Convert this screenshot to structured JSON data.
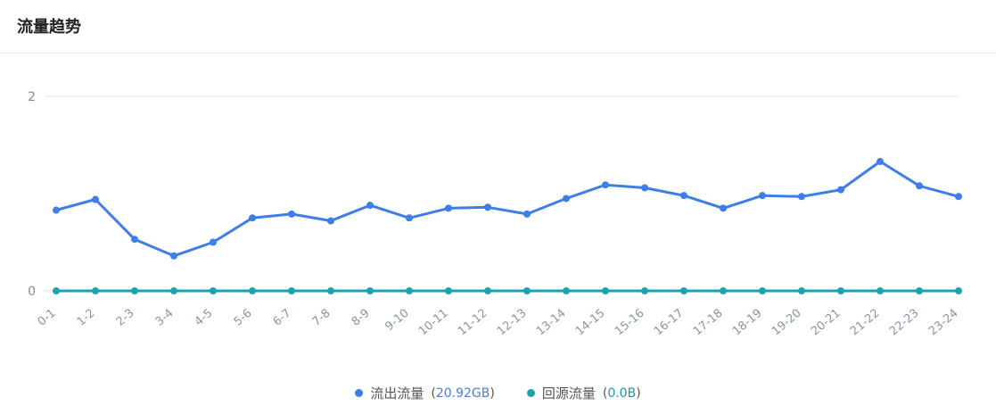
{
  "header": {
    "title": "流量趋势"
  },
  "legend": [
    {
      "name": "流出流量",
      "value": "20.92GB",
      "color": "#3d7ee8",
      "value_color": "#4a7fd4"
    },
    {
      "name": "回源流量",
      "value": "0.0B",
      "color": "#1fa2b0",
      "value_color": "#1a9cae"
    }
  ],
  "chart_data": {
    "type": "line",
    "categories": [
      "0-1",
      "1-2",
      "2-3",
      "3-4",
      "4-5",
      "5-6",
      "6-7",
      "7-8",
      "8-9",
      "9-10",
      "10-11",
      "11-12",
      "12-13",
      "13-14",
      "14-15",
      "15-16",
      "16-17",
      "17-18",
      "18-19",
      "19-20",
      "20-21",
      "21-22",
      "22-23",
      "23-24"
    ],
    "y_ticks": [
      "0",
      "2"
    ],
    "ylim": [
      0,
      2
    ],
    "grid": true,
    "legend_position": "bottom",
    "series": [
      {
        "name": "流出流量",
        "color": "#3d7ee8",
        "values": [
          0.83,
          0.94,
          0.53,
          0.36,
          0.5,
          0.75,
          0.79,
          0.72,
          0.88,
          0.75,
          0.85,
          0.86,
          0.79,
          0.95,
          1.09,
          1.06,
          0.98,
          0.85,
          0.98,
          0.97,
          1.04,
          1.33,
          1.08,
          0.97
        ]
      },
      {
        "name": "回源流量",
        "color": "#1fa2b0",
        "values": [
          0,
          0,
          0,
          0,
          0,
          0,
          0,
          0,
          0,
          0,
          0,
          0,
          0,
          0,
          0,
          0,
          0,
          0,
          0,
          0,
          0,
          0,
          0,
          0
        ]
      }
    ]
  }
}
